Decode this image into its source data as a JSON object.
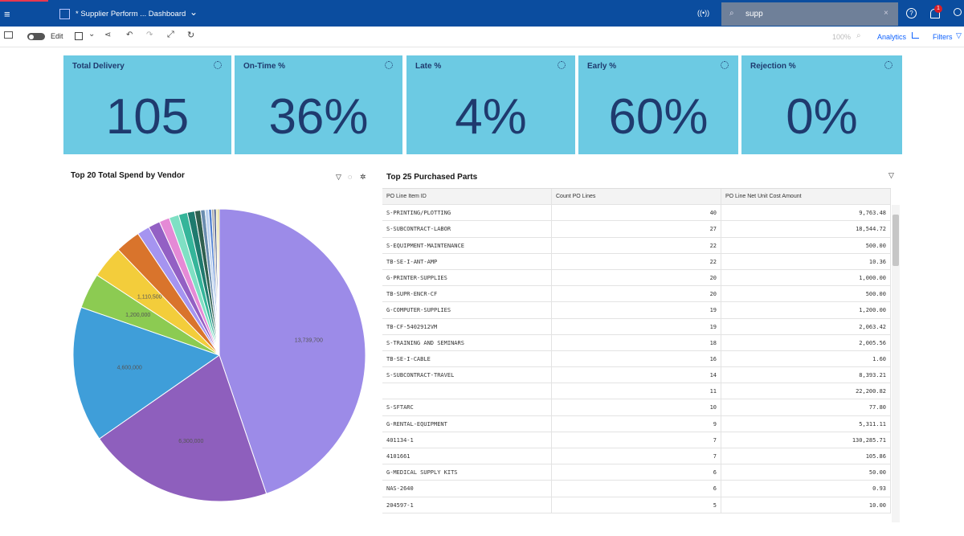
{
  "header": {
    "title": "* Supplier Perform ... Dashboard",
    "search": "supp",
    "notification_count": "1"
  },
  "toolbar": {
    "edit": "Edit",
    "zoom": "100%",
    "analytics": "Analytics",
    "filters": "Filters"
  },
  "kpis": [
    {
      "title": "Total Delivery",
      "value": "105"
    },
    {
      "title": "On-Time %",
      "value": "36%"
    },
    {
      "title": "Late %",
      "value": "4%"
    },
    {
      "title": "Early %",
      "value": "60%"
    },
    {
      "title": "Rejection %",
      "value": "0%"
    }
  ],
  "chart_data": {
    "type": "pie",
    "title": "Top 20 Total Spend by Vendor",
    "values": [
      13739700,
      6300000,
      4600000,
      1200000,
      1110500,
      850000,
      420000,
      400000,
      350000,
      330000,
      300000,
      250000,
      200000,
      150000,
      120000,
      100000,
      80000,
      70000,
      60000,
      50000
    ],
    "value_labels": [
      "13,739,700",
      "6,300,000",
      "4,600,000",
      "1,200,000",
      "1,110,500",
      null,
      null,
      null,
      null,
      null,
      null,
      null,
      null,
      null,
      null,
      null,
      null,
      null,
      null,
      null
    ],
    "colors": [
      "#9c8be8",
      "#8e5fbd",
      "#3f9ed9",
      "#8ccb52",
      "#f3cd3b",
      "#d9742c",
      "#a594f0",
      "#9360c4",
      "#e58ad6",
      "#7fe0c4",
      "#35b59a",
      "#1f7a6e",
      "#2f5f4f",
      "#6a8db0",
      "#b9d0ef",
      "#4f7fd0",
      "#a7a7a7",
      "#2b3f7a",
      "#e8e49a",
      "#c8b83a"
    ]
  },
  "table": {
    "title": "Top 25 Purchased Parts",
    "columns": [
      "PO Line Item ID",
      "Count PO Lines",
      "PO Line Net Unit Cost Amount"
    ],
    "rows": [
      [
        "S-PRINTING/PLOTTING",
        40,
        "9,763.48"
      ],
      [
        "S-SUBCONTRACT-LABOR",
        27,
        "18,544.72"
      ],
      [
        "S-EQUIPMENT-MAINTENANCE",
        22,
        "500.00"
      ],
      [
        "TB-SE-I-ANT-AMP",
        22,
        "10.36"
      ],
      [
        "G-PRINTER-SUPPLIES",
        20,
        "1,000.00"
      ],
      [
        "TB-SUPR-ENCR-CF",
        20,
        "500.00"
      ],
      [
        "G-COMPUTER-SUPPLIES",
        19,
        "1,200.00"
      ],
      [
        "TB-CF-5402912VM",
        19,
        "2,063.42"
      ],
      [
        "S-TRAINING AND SEMINARS",
        18,
        "2,005.56"
      ],
      [
        "TB-SE-I-CABLE",
        16,
        "1.60"
      ],
      [
        "S-SUBCONTRACT-TRAVEL",
        14,
        "8,393.21"
      ],
      [
        null,
        11,
        "22,200.82"
      ],
      [
        "S-SFTARC",
        10,
        "77.80"
      ],
      [
        "G-RENTAL-EQUIPMENT",
        9,
        "5,311.11"
      ],
      [
        "401134-1",
        7,
        "130,285.71"
      ],
      [
        "4101661",
        7,
        "105.86"
      ],
      [
        "G-MEDICAL SUPPLY KITS",
        6,
        "50.00"
      ],
      [
        "NAS-2640",
        6,
        "0.93"
      ],
      [
        "204597-1",
        5,
        "10.00"
      ]
    ]
  }
}
